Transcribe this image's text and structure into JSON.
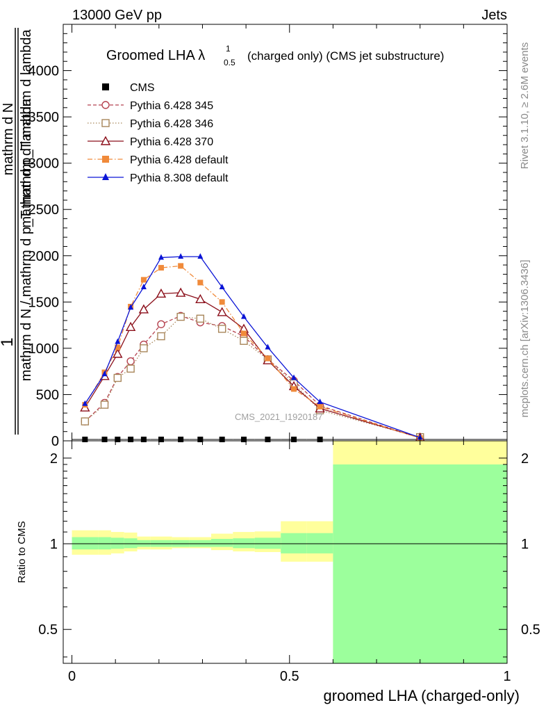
{
  "header": {
    "left": "13000 GeV pp",
    "right": "Jets"
  },
  "side_labels": {
    "rivet": "Rivet 3.1.10, ≥ 2.6M events",
    "mcplots": "mcplots.cern.ch [arXiv:1306.3436]"
  },
  "chart_data": {
    "type": "line",
    "title": "Groomed LHA λ",
    "title_superscript": "1",
    "title_subscript": "0.5",
    "title_suffix": "(charged only) (CMS jet substructure)",
    "watermark": "CMS_2021_I1920187",
    "xlabel": "groomed LHA (charged-only)",
    "ylabel_fraction_numerator": "1",
    "ylabel_main": "mathrm d N / mathrm d p_T mathrm d lambda",
    "ylabel_fraction_denominator_lines": [
      "mathrm d N",
      "mathrm d p_T mathrm d lambda"
    ],
    "ratio_ylabel": "Ratio to CMS",
    "xlim": [
      -0.02,
      1.0
    ],
    "ylim": [
      0,
      4500
    ],
    "ratio_ylim": [
      0.38,
      2.3
    ],
    "ratio_scale": "log",
    "x_ticks": [
      0,
      0.5,
      1
    ],
    "x_tick_labels": [
      "0",
      "0.5",
      "1"
    ],
    "y_ticks": [
      0,
      500,
      1000,
      1500,
      2000,
      2500,
      3000,
      3500,
      4000
    ],
    "y_tick_labels": [
      "0",
      "500",
      "1000",
      "1500",
      "2000",
      "2500",
      "3000",
      "3500",
      "4000"
    ],
    "ratio_ticks": [
      0.5,
      1,
      2
    ],
    "ratio_tick_labels": [
      "0.5",
      "1",
      "2"
    ],
    "legend_position": "top-left",
    "bins": [
      0,
      0.06,
      0.09,
      0.12,
      0.15,
      0.18,
      0.23,
      0.27,
      0.32,
      0.37,
      0.42,
      0.48,
      0.54,
      0.6,
      1.0
    ],
    "x": [
      0.03,
      0.075,
      0.105,
      0.135,
      0.165,
      0.205,
      0.25,
      0.295,
      0.345,
      0.395,
      0.45,
      0.51,
      0.57,
      0.8
    ],
    "series": [
      {
        "name": "CMS",
        "color": "#000000",
        "marker": "filled-square",
        "line": "none",
        "values": [
          15,
          15,
          15,
          15,
          15,
          15,
          15,
          15,
          15,
          15,
          15,
          15,
          15,
          15
        ]
      },
      {
        "name": "Pythia 6.428 345",
        "color": "#b5424f",
        "marker": "open-circle",
        "line": "dashed",
        "values": [
          210,
          410,
          690,
          860,
          1040,
          1260,
          1350,
          1280,
          1240,
          1130,
          880,
          650,
          380,
          30
        ]
      },
      {
        "name": "Pythia 6.428 346",
        "color": "#a8865a",
        "marker": "open-square",
        "line": "dotted",
        "values": [
          210,
          390,
          680,
          780,
          1000,
          1130,
          1340,
          1320,
          1210,
          1080,
          880,
          620,
          330,
          40
        ]
      },
      {
        "name": "Pythia 6.428 370",
        "color": "#8b0f1a",
        "marker": "open-triangle",
        "line": "solid",
        "values": [
          360,
          700,
          940,
          1230,
          1420,
          1590,
          1600,
          1530,
          1390,
          1210,
          870,
          590,
          350,
          35
        ]
      },
      {
        "name": "Pythia 6.428 default",
        "color": "#f08a3a",
        "marker": "filled-square",
        "line": "dashdot",
        "values": [
          390,
          740,
          1010,
          1450,
          1740,
          1870,
          1890,
          1710,
          1500,
          1160,
          890,
          560,
          370,
          30
        ]
      },
      {
        "name": "Pythia 8.308 default",
        "color": "#0a14d6",
        "marker": "filled-triangle",
        "line": "solid",
        "values": [
          400,
          720,
          1070,
          1440,
          1660,
          1980,
          1990,
          1990,
          1660,
          1340,
          1010,
          680,
          420,
          35
        ]
      }
    ],
    "ratio_bands": {
      "stat_color": "#9cff9c",
      "total_color": "#ffff9c",
      "stat_low": [
        0.955,
        0.955,
        0.96,
        0.965,
        0.975,
        0.975,
        0.975,
        0.975,
        0.975,
        0.965,
        0.96,
        0.925,
        0.925,
        0.36
      ],
      "stat_high": [
        1.055,
        1.055,
        1.05,
        1.045,
        1.03,
        1.03,
        1.03,
        1.03,
        1.04,
        1.045,
        1.05,
        1.09,
        1.09,
        1.9
      ],
      "total_low": [
        0.915,
        0.915,
        0.925,
        0.94,
        0.955,
        0.955,
        0.965,
        0.965,
        0.95,
        0.94,
        0.935,
        0.865,
        0.865,
        0.36
      ],
      "total_high": [
        1.115,
        1.115,
        1.1,
        1.095,
        1.06,
        1.06,
        1.055,
        1.055,
        1.085,
        1.1,
        1.105,
        1.2,
        1.2,
        2.4
      ]
    }
  }
}
